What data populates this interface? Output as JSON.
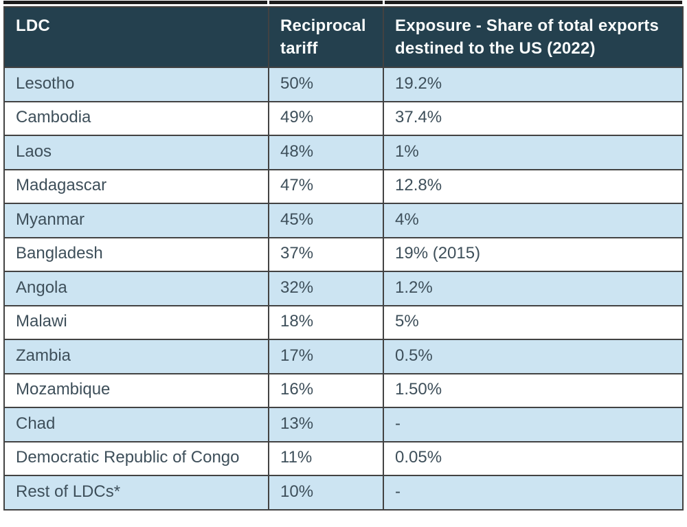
{
  "colors": {
    "header_bg": "#24404e",
    "header_text": "#fafcfc",
    "row_alt_bg": "#cce4f2",
    "row_bg": "#ffffff",
    "body_text": "#3e4f5a",
    "border": "#424242",
    "top_rule": "#1c1c1c"
  },
  "table": {
    "columns": [
      {
        "label": "LDC"
      },
      {
        "label": "Reciprocal tariff"
      },
      {
        "label": "Exposure - Share of total exports destined to the US (2022)"
      }
    ],
    "rows": [
      [
        "Lesotho",
        "50%",
        "19.2%"
      ],
      [
        "Cambodia",
        "49%",
        "37.4%"
      ],
      [
        "Laos",
        "48%",
        "1%"
      ],
      [
        "Madagascar",
        "47%",
        "12.8%"
      ],
      [
        "Myanmar",
        "45%",
        "4%"
      ],
      [
        "Bangladesh",
        "37%",
        "19% (2015)"
      ],
      [
        "Angola",
        "32%",
        "1.2%"
      ],
      [
        "Malawi",
        "18%",
        "5%"
      ],
      [
        "Zambia",
        "17%",
        "0.5%"
      ],
      [
        "Mozambique",
        "16%",
        "1.50%"
      ],
      [
        "Chad",
        "13%",
        "-"
      ],
      [
        "Democratic Republic of Congo",
        "11%",
        "0.05%"
      ],
      [
        "Rest of LDCs*",
        "10%",
        "-"
      ]
    ]
  },
  "chart_data": {
    "type": "table",
    "title": "",
    "columns": [
      "LDC",
      "Reciprocal tariff",
      "Exposure - Share of total exports destined to the US (2022)"
    ],
    "categories": [
      "Lesotho",
      "Cambodia",
      "Laos",
      "Madagascar",
      "Myanmar",
      "Bangladesh",
      "Angola",
      "Malawi",
      "Zambia",
      "Mozambique",
      "Chad",
      "Democratic Republic of Congo",
      "Rest of LDCs*"
    ],
    "series": [
      {
        "name": "Reciprocal tariff (%)",
        "values": [
          50,
          49,
          48,
          47,
          45,
          37,
          32,
          18,
          17,
          16,
          13,
          11,
          10
        ]
      },
      {
        "name": "Exposure - Share of total exports destined to the US 2022 (%)",
        "values": [
          19.2,
          37.4,
          1,
          12.8,
          4,
          19,
          1.2,
          5,
          0.5,
          1.5,
          null,
          0.05,
          null
        ]
      }
    ],
    "annotations": [
      "Bangladesh exposure value is from 2015: 19% (2015)",
      "Chad and Rest of LDCs* exposure shown as '-'"
    ]
  }
}
